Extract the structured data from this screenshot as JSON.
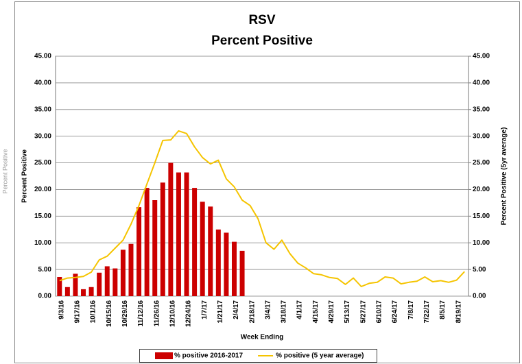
{
  "chart_data": {
    "type": "bar-line",
    "title": "RSV",
    "subtitle": "Percent Positive",
    "side_label": "Percent Positive",
    "x_label": "Week Ending",
    "y_label": "Percent  Positive",
    "y2_label": "Percent Positive  (5yr average)",
    "categories": [
      "9/3/16",
      null,
      "9/17/16",
      null,
      "10/1/16",
      null,
      "10/15/16",
      null,
      "10/29/16",
      null,
      "11/12/16",
      null,
      "11/26/16",
      null,
      "12/10/16",
      null,
      "12/24/16",
      null,
      "1/7/17",
      null,
      "1/21/17",
      null,
      "2/4/17",
      null,
      "2/18/17",
      null,
      "3/4/17",
      null,
      "3/18/17",
      null,
      "4/1/17",
      null,
      "4/15/17",
      null,
      "4/29/17",
      null,
      "5/13/17",
      null,
      "5/27/17",
      null,
      "6/10/17",
      null,
      "6/24/17",
      null,
      "7/8/17",
      null,
      "7/22/17",
      null,
      "8/5/17",
      null,
      "8/19/17",
      null
    ],
    "series": [
      {
        "name": "% positive 2016-2017",
        "type": "bar",
        "color": "#cc0000",
        "values": [
          3.6,
          1.7,
          4.2,
          1.3,
          1.7,
          4.4,
          5.6,
          5.2,
          8.7,
          9.8,
          16.7,
          20.3,
          18.0,
          21.3,
          25.0,
          23.2,
          23.2,
          20.3,
          17.7,
          16.8,
          12.5,
          11.9,
          10.2,
          8.5,
          null,
          null,
          null,
          null,
          null,
          null,
          null,
          null,
          null,
          null,
          null,
          null,
          null,
          null,
          null,
          null,
          null,
          null,
          null,
          null,
          null,
          null,
          null,
          null,
          null,
          null,
          null,
          null
        ]
      },
      {
        "name": "% positive (5 year average)",
        "type": "line",
        "color": "#f5c400",
        "axis": "y2",
        "values": [
          2.9,
          3.4,
          3.5,
          3.7,
          4.5,
          6.8,
          7.5,
          9.0,
          10.5,
          13.5,
          17.0,
          21.0,
          25.0,
          29.2,
          29.3,
          31.0,
          30.5,
          28.0,
          26.0,
          24.8,
          25.5,
          22.0,
          20.5,
          18.0,
          17.0,
          14.5,
          10.0,
          8.8,
          10.5,
          8.0,
          6.2,
          5.3,
          4.2,
          4.0,
          3.5,
          3.3,
          2.2,
          3.4,
          1.8,
          2.4,
          2.6,
          3.6,
          3.4,
          2.3,
          2.6,
          2.8,
          3.6,
          2.7,
          2.9,
          2.6,
          3.0,
          4.6
        ]
      }
    ],
    "ylim": [
      0,
      45
    ],
    "yticks": [
      {
        "value": 0,
        "label": "0.00"
      },
      {
        "value": 5,
        "label": "5.00"
      },
      {
        "value": 10,
        "label": "10.00"
      },
      {
        "value": 15,
        "label": "15.00"
      },
      {
        "value": 20,
        "label": "20.00"
      },
      {
        "value": 25,
        "label": "25.00"
      },
      {
        "value": 30,
        "label": "30.00"
      },
      {
        "value": 35,
        "label": "35.00"
      },
      {
        "value": 40,
        "label": "40.00"
      },
      {
        "value": 45,
        "label": "45.00"
      }
    ],
    "y2lim": [
      0,
      45
    ],
    "y2ticks": [
      {
        "value": 0,
        "label": "0.00"
      },
      {
        "value": 5,
        "label": "5.00"
      },
      {
        "value": 10,
        "label": "10.00"
      },
      {
        "value": 15,
        "label": "15.00"
      },
      {
        "value": 20,
        "label": "20.00"
      },
      {
        "value": 25,
        "label": "25.00"
      },
      {
        "value": 30,
        "label": "30.00"
      },
      {
        "value": 35,
        "label": "35.00"
      },
      {
        "value": 40,
        "label": "40.00"
      },
      {
        "value": 45,
        "label": "45.00"
      }
    ],
    "grid": true,
    "legend": "bottom"
  }
}
